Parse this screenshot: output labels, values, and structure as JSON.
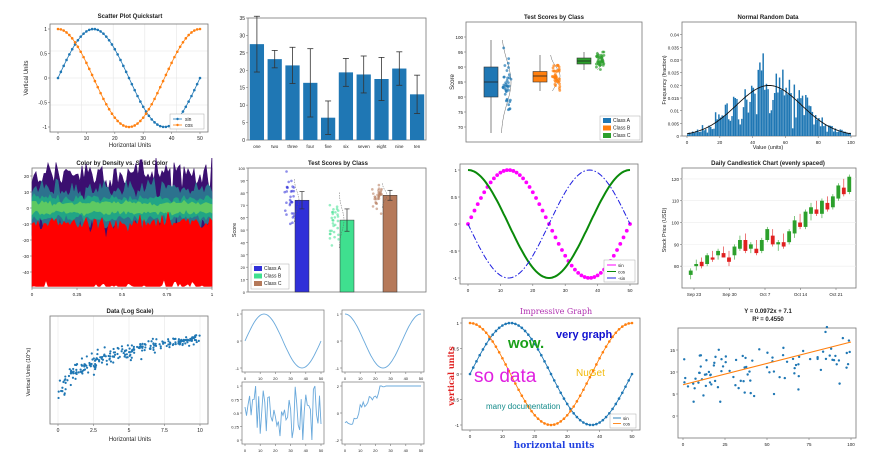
{
  "chart_data": [
    {
      "id": "scatter",
      "type": "line",
      "title": "Scatter Plot Quickstart",
      "xlabel": "Horizontal Units",
      "ylabel": "Vertical Units",
      "xlim": [
        0,
        50
      ],
      "ylim": [
        -1,
        1
      ],
      "x_ticks": [
        "0",
        "10",
        "20",
        "30",
        "40",
        "50"
      ],
      "y_ticks": [
        "1",
        "0.5",
        "0",
        "-0.5",
        "-1"
      ],
      "legend_position": "bottom-right",
      "series": [
        {
          "name": "sin",
          "func": "sin",
          "color": "#1f77b4",
          "marker": "circle",
          "points": 51
        },
        {
          "name": "cos",
          "func": "cos",
          "color": "#ff7f0e",
          "marker": "circle",
          "points": 51
        }
      ]
    },
    {
      "id": "bar",
      "type": "bar",
      "title": "",
      "categories": [
        "one",
        "two",
        "three",
        "four",
        "five",
        "six",
        "seven",
        "eight",
        "nine",
        "ten"
      ],
      "values": [
        27.5,
        23.2,
        21.4,
        16.4,
        6.4,
        19.4,
        18.8,
        17.5,
        20.5,
        13.1
      ],
      "errors": [
        8.0,
        2.5,
        5.2,
        9.8,
        4.8,
        4.0,
        5.3,
        6.2,
        4.8,
        5.5
      ],
      "ylim": [
        0,
        35
      ],
      "y_ticks": [
        "0",
        "5",
        "10",
        "15",
        "20",
        "25",
        "30",
        "35"
      ],
      "color": "#1f77b4"
    },
    {
      "id": "box",
      "type": "scatter",
      "title": "Test Scores by Class",
      "ylabel": "Score",
      "ylim": [
        65,
        105
      ],
      "y_ticks": [
        "70",
        "75",
        "80",
        "85",
        "90",
        "95",
        "100"
      ],
      "legend_position": "bottom-right",
      "series": [
        {
          "name": "Class A",
          "color": "#1f77b4",
          "q1": 80,
          "median": 85,
          "q3": 90,
          "whisker_low": 68,
          "whisker_high": 99,
          "center": 85,
          "spread": 7
        },
        {
          "name": "Class B",
          "color": "#ff7f0e",
          "q1": 85,
          "median": 87,
          "q3": 88.5,
          "whisker_low": 82,
          "whisker_high": 94,
          "center": 87,
          "spread": 3
        },
        {
          "name": "Class C",
          "color": "#2ca02c",
          "q1": 91,
          "median": 92,
          "q3": 93,
          "whisker_low": 89,
          "whisker_high": 95,
          "center": 92,
          "spread": 2
        }
      ]
    },
    {
      "id": "hist",
      "type": "bar",
      "title": "Normal Random Data",
      "xlabel": "Value (units)",
      "ylabel": "Frequency (fraction)",
      "mean": 50,
      "std": 20,
      "xlim": [
        0,
        100
      ],
      "ylim": [
        0,
        0.045
      ],
      "x_ticks": [
        "0",
        "20",
        "40",
        "60",
        "80",
        "100"
      ],
      "y_ticks": [
        "0",
        "0.005",
        "0.01",
        "0.015",
        "0.02",
        "0.025",
        "0.03",
        "0.035",
        "0.04"
      ],
      "bins": 100,
      "color": "#1f77b4"
    },
    {
      "id": "density",
      "type": "scatter",
      "title": "Color by Density vs. Solid Color",
      "xlim": [
        0,
        1
      ],
      "ylim": [
        -50,
        25
      ],
      "x_ticks": [
        "0",
        "0.25",
        "0.5",
        "0.75",
        "1"
      ],
      "y_ticks": [
        "20",
        "10",
        "0",
        "-10",
        "-20",
        "-30",
        "-40"
      ],
      "series": [
        {
          "name": "",
          "center": 0,
          "spread": 10,
          "colors": [
            "#3b0f70",
            "#2c728e",
            "#21a585",
            "#5ec962"
          ]
        },
        {
          "name": "",
          "center": -30,
          "spread": 8,
          "colors": [
            "#ff0000"
          ]
        }
      ]
    },
    {
      "id": "barscatter",
      "type": "bar",
      "title": "Test Scores by Class",
      "ylabel": "Score",
      "categories": [
        "Class A",
        "Class B",
        "Class C"
      ],
      "values": [
        74,
        58,
        78
      ],
      "errors": [
        7,
        9,
        4
      ],
      "ylim": [
        0,
        100
      ],
      "y_ticks": [
        "0",
        "10",
        "20",
        "30",
        "40",
        "50",
        "60",
        "70",
        "80",
        "90",
        "100"
      ],
      "colors": [
        "#3030d8",
        "#3fe08f",
        "#b5795a"
      ],
      "legend_position": "bottom-left"
    },
    {
      "id": "styled",
      "type": "line",
      "title": "",
      "xlim": [
        0,
        50
      ],
      "ylim": [
        -1,
        1
      ],
      "x_ticks": [
        "0",
        "10",
        "20",
        "30",
        "40",
        "50"
      ],
      "y_ticks": [
        "1",
        "0.5",
        "0",
        "-0.5",
        "-1"
      ],
      "legend_position": "bottom-right",
      "series": [
        {
          "name": "sin",
          "func": "sin",
          "color": "#ff00ff",
          "style": "markers"
        },
        {
          "name": "cos",
          "func": "cos",
          "color": "#0a8a0a",
          "style": "solid"
        },
        {
          "name": "-sin",
          "func": "-sin",
          "color": "#2020e0",
          "style": "dashdot"
        }
      ]
    },
    {
      "id": "candle",
      "type": "bar",
      "title": "Daily Candlestick Chart (evenly spaced)",
      "ylabel": "Stock Price (USD)",
      "ylim": [
        70,
        125
      ],
      "y_ticks": [
        "120",
        "110",
        "100",
        "90",
        "80"
      ],
      "x_ticks": [
        "Sep 23",
        "Sep 30",
        "Oct 7",
        "Oct 14",
        "Oct 21"
      ],
      "up_color": "#2ca02c",
      "down_color": "#e02020",
      "candles": [
        [
          76,
          79,
          74,
          78
        ],
        [
          80,
          83,
          78,
          81
        ],
        [
          82,
          84,
          79,
          80
        ],
        [
          81,
          86,
          80,
          85
        ],
        [
          84,
          87,
          82,
          83
        ],
        [
          85,
          88,
          83,
          87
        ],
        [
          86,
          89,
          84,
          84
        ],
        [
          84,
          87,
          80,
          82
        ],
        [
          85,
          90,
          83,
          89
        ],
        [
          88,
          94,
          87,
          92
        ],
        [
          92,
          95,
          86,
          87
        ],
        [
          88,
          91,
          86,
          90
        ],
        [
          88,
          92,
          85,
          86
        ],
        [
          87,
          93,
          86,
          92
        ],
        [
          92,
          98,
          91,
          97
        ],
        [
          94,
          97,
          89,
          90
        ],
        [
          90,
          92,
          87,
          91
        ],
        [
          91,
          95,
          88,
          89
        ],
        [
          91,
          97,
          90,
          96
        ],
        [
          95,
          103,
          93,
          101
        ],
        [
          100,
          104,
          97,
          98
        ],
        [
          98,
          106,
          97,
          105
        ],
        [
          104,
          109,
          101,
          107
        ],
        [
          106,
          110,
          103,
          104
        ],
        [
          104,
          111,
          102,
          110
        ],
        [
          109,
          112,
          105,
          106
        ],
        [
          107,
          113,
          106,
          112
        ],
        [
          111,
          118,
          110,
          117
        ],
        [
          116,
          120,
          112,
          113
        ],
        [
          114,
          122,
          113,
          121
        ]
      ]
    },
    {
      "id": "logscale",
      "type": "scatter",
      "title": "Data (Log Scale)",
      "xlabel": "Horizontal Units",
      "ylabel": "Vertical Units (10^x)",
      "xlim": [
        0,
        10
      ],
      "ylim": [
        -1,
        1.6
      ],
      "x_ticks": [
        "0",
        "2.5",
        "5",
        "7.5",
        "10"
      ],
      "points": 250,
      "color": "#1f77b4"
    },
    {
      "id": "subplots",
      "type": "line",
      "title": "",
      "xlim": [
        0,
        50
      ],
      "x_ticks": [
        "0",
        "10",
        "20",
        "30",
        "40",
        "50"
      ],
      "color": "#6aa9db",
      "panels": [
        {
          "kind": "sin",
          "y_ticks": [
            "1",
            "0",
            "-1"
          ]
        },
        {
          "kind": "cos",
          "y_ticks": [
            "1",
            "0",
            "-1"
          ]
        },
        {
          "kind": "noise",
          "y_ticks": [
            "1",
            "0.75",
            "0.5",
            "0.25",
            "0"
          ]
        },
        {
          "kind": "walk",
          "y_ticks": [
            "2",
            "0",
            "-2"
          ]
        }
      ]
    },
    {
      "id": "fun",
      "type": "line",
      "title": "Impressive Graph",
      "xlabel": "horizontal units",
      "ylabel": "vertical units",
      "xlim": [
        0,
        50
      ],
      "ylim": [
        -1,
        1
      ],
      "x_ticks": [
        "0",
        "10",
        "20",
        "30",
        "40",
        "50"
      ],
      "y_ticks": [
        "1",
        "0.5",
        "0",
        "-0.5",
        "-1"
      ],
      "legend_position": "bottom-right",
      "series": [
        {
          "name": "sin",
          "func": "sin",
          "color": "#1f77b4"
        },
        {
          "name": "cos",
          "func": "cos",
          "color": "#ff7f0e"
        }
      ],
      "annotations": [
        {
          "text": "wow.",
          "color": "#19a019"
        },
        {
          "text": "very graph",
          "color": "#1010d0"
        },
        {
          "text": "so data",
          "color": "#e020e0"
        },
        {
          "text": "NuGet",
          "color": "#f2b90a"
        },
        {
          "text": "many documentation",
          "color": "#128a8a"
        }
      ]
    },
    {
      "id": "regression",
      "type": "scatter",
      "title": "Y = 0.0972x + 7.1",
      "subtitle": "R² = 0.4550",
      "xlim": [
        0,
        100
      ],
      "ylim": [
        -5,
        20
      ],
      "x_ticks": [
        "0",
        "25",
        "50",
        "75",
        "100"
      ],
      "y_ticks": [
        "15",
        "10",
        "5",
        "0"
      ],
      "slope": 0.0972,
      "intercept": 7.1,
      "points": 100,
      "point_color": "#1f77b4",
      "line_color": "#ff7f0e"
    }
  ]
}
